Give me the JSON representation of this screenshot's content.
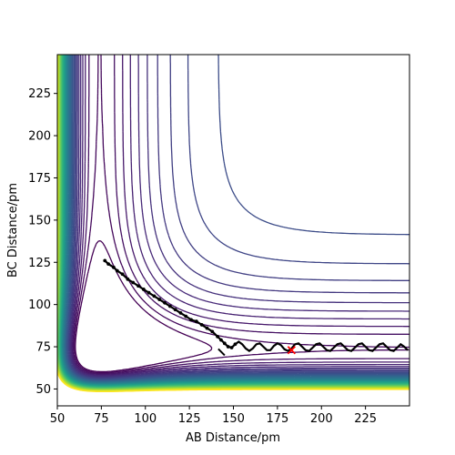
{
  "chart_data": {
    "type": "contour",
    "title": "",
    "xlabel": "AB Distance/pm",
    "ylabel": "BC Distance/pm",
    "xlim": [
      50,
      250
    ],
    "ylim": [
      40,
      248
    ],
    "x_ticks": [
      50,
      75,
      100,
      125,
      150,
      175,
      200,
      225
    ],
    "y_ticks": [
      50,
      75,
      100,
      125,
      150,
      175,
      200,
      225
    ],
    "colormap": "viridis",
    "contour_levels": 44,
    "trajectory_color": "#000000",
    "trajectory": [
      [
        77,
        126
      ],
      [
        79,
        124
      ],
      [
        82,
        122
      ],
      [
        84,
        120
      ],
      [
        87,
        118
      ],
      [
        90,
        115
      ],
      [
        93,
        113
      ],
      [
        96,
        111
      ],
      [
        99,
        109
      ],
      [
        102,
        107
      ],
      [
        105,
        105
      ],
      [
        108,
        103
      ],
      [
        111,
        101
      ],
      [
        114,
        99
      ],
      [
        117,
        97
      ],
      [
        120,
        95
      ],
      [
        123,
        93
      ],
      [
        126,
        91
      ],
      [
        129,
        90
      ],
      [
        132,
        88
      ],
      [
        135,
        86
      ],
      [
        138,
        84
      ],
      [
        141,
        81
      ],
      [
        143,
        79
      ],
      [
        145,
        77
      ],
      [
        147,
        75
      ],
      [
        149,
        74.5
      ],
      [
        151,
        76.5
      ],
      [
        153,
        78
      ],
      [
        155,
        76.5
      ],
      [
        157,
        74
      ],
      [
        159,
        72.5
      ],
      [
        161,
        74
      ],
      [
        163,
        76.5
      ],
      [
        165,
        77
      ],
      [
        167,
        75
      ],
      [
        169,
        73
      ],
      [
        171,
        73
      ],
      [
        173,
        75.5
      ],
      [
        175,
        77
      ],
      [
        177,
        76
      ],
      [
        179,
        73.5
      ],
      [
        181,
        72.5
      ],
      [
        183,
        74
      ],
      [
        185,
        76.5
      ],
      [
        187,
        77
      ],
      [
        189,
        75
      ],
      [
        191,
        73
      ],
      [
        193,
        72.5
      ],
      [
        195,
        74.5
      ],
      [
        197,
        76.5
      ],
      [
        199,
        77
      ],
      [
        201,
        75
      ],
      [
        203,
        73
      ],
      [
        205,
        72.5
      ],
      [
        207,
        74.5
      ],
      [
        209,
        76.5
      ],
      [
        211,
        77
      ],
      [
        213,
        75
      ],
      [
        215,
        73
      ],
      [
        217,
        72.5
      ],
      [
        219,
        74.5
      ],
      [
        221,
        76.5
      ],
      [
        223,
        77
      ],
      [
        225,
        75
      ],
      [
        227,
        73
      ],
      [
        229,
        72.5
      ],
      [
        231,
        74.5
      ],
      [
        233,
        76.5
      ],
      [
        235,
        77
      ],
      [
        237,
        75
      ],
      [
        239,
        73
      ],
      [
        241,
        72.5
      ],
      [
        243,
        74.5
      ],
      [
        245,
        76.5
      ],
      [
        247,
        75
      ],
      [
        249,
        73
      ]
    ],
    "start_marker": [
      144,
      71
    ],
    "start_marker_color": "#000000",
    "marker": [
      183,
      73
    ],
    "marker_color": "#ff0000"
  }
}
